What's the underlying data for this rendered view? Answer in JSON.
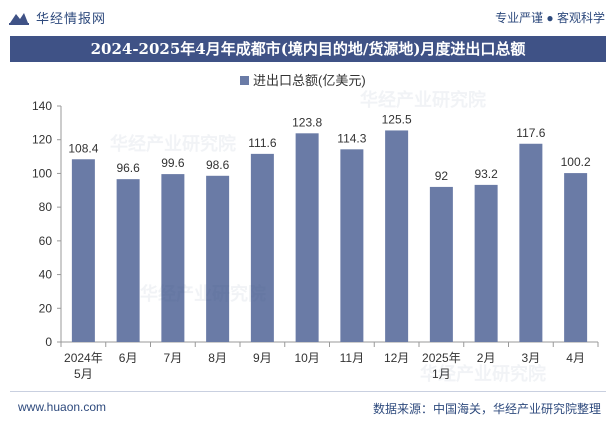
{
  "header": {
    "brand": "华经情报网",
    "tagline": "专业严谨 ● 客观科学"
  },
  "chart_data": {
    "type": "bar",
    "title": "2024-2025年4月年成都市(境内目的地/货源地)月度进出口总额",
    "legend": "进出口总额(亿美元)",
    "categories": [
      "2024年5月",
      "6月",
      "7月",
      "8月",
      "9月",
      "10月",
      "11月",
      "12月",
      "2025年1月",
      "2月",
      "3月",
      "4月"
    ],
    "values": [
      108.4,
      96.6,
      99.6,
      98.6,
      111.6,
      123.8,
      114.3,
      125.5,
      92,
      93.2,
      117.6,
      100.2
    ],
    "value_labels": [
      "108.4",
      "96.6",
      "99.6",
      "98.6",
      "111.6",
      "123.8",
      "114.3",
      "125.5",
      "92",
      "93.2",
      "117.6",
      "100.2"
    ],
    "yticks": [
      0,
      20,
      40,
      60,
      80,
      100,
      120,
      140
    ],
    "ylim": [
      0,
      140
    ],
    "bar_color": "#6a7ba6",
    "xlabel": "",
    "ylabel": ""
  },
  "footer": {
    "website": "www.huaon.com",
    "source": "数据来源：中国海关，华经产业研究院整理"
  }
}
